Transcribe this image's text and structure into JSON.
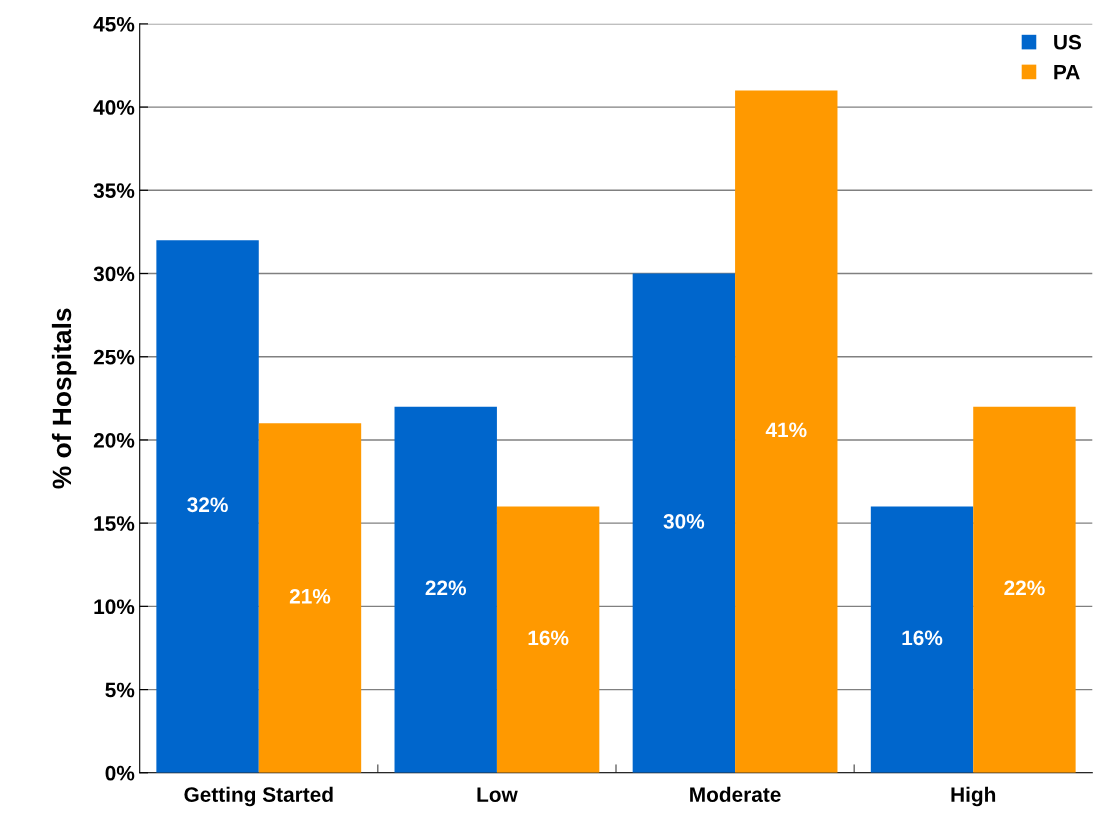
{
  "chart_data": {
    "type": "bar",
    "ylabel": "% of Hospitals",
    "categories": [
      "Getting Started",
      "Low",
      "Moderate",
      "High"
    ],
    "series": [
      {
        "name": "US",
        "color": "#0066cc",
        "values": [
          32,
          22,
          30,
          16
        ],
        "value_labels": [
          "32%",
          "22%",
          "30%",
          "16%"
        ]
      },
      {
        "name": "PA",
        "color": "#ff9900",
        "values": [
          21,
          16,
          41,
          22
        ],
        "value_labels": [
          "21%",
          "16%",
          "41%",
          "22%"
        ]
      }
    ],
    "ylim": [
      0,
      45
    ],
    "yticks": [
      {
        "value": 0,
        "label": "0%"
      },
      {
        "value": 5,
        "label": "5%"
      },
      {
        "value": 10,
        "label": "10%"
      },
      {
        "value": 15,
        "label": "15%"
      },
      {
        "value": 20,
        "label": "20%"
      },
      {
        "value": 25,
        "label": "25%"
      },
      {
        "value": 30,
        "label": "30%"
      },
      {
        "value": 35,
        "label": "35%"
      },
      {
        "value": 40,
        "label": "40%"
      },
      {
        "value": 45,
        "label": "45%"
      }
    ],
    "grid": "y",
    "legend": "top right"
  }
}
